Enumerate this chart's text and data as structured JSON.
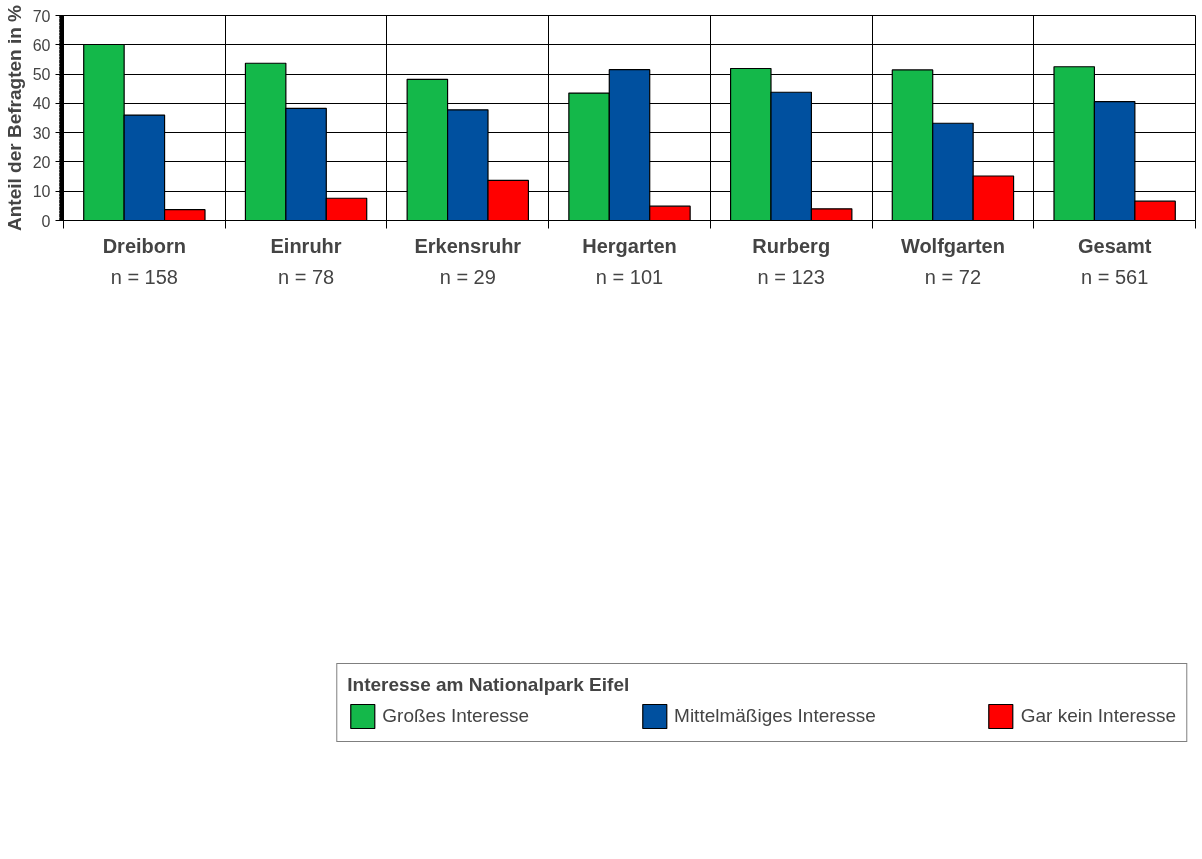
{
  "chart_data": {
    "type": "bar",
    "ylabel": "Anteil der Befragten in %",
    "legend_title": "Interesse am Nationalpark Eifel",
    "categories": [
      "Dreiborn\nn = 158",
      "Einruhr\nn = 78",
      "Erkensruhr\nn = 29",
      "Hergarten\nn = 101",
      "Rurberg\nn = 123",
      "Wolfgarten\nn = 72",
      "Gesamt\nn = 561"
    ],
    "series": [
      {
        "name": "Großes Interesse",
        "color": "#14b84a",
        "values": [
          60.1,
          53.7,
          48.2,
          43.5,
          51.9,
          51.4,
          52.5
        ]
      },
      {
        "name": "Mittelmäßiges Interesse",
        "color": "#00509f",
        "values": [
          36.0,
          38.3,
          37.8,
          51.5,
          43.8,
          33.2,
          40.6
        ]
      },
      {
        "name": "Gar kein Interesse",
        "color": "#ff0000",
        "values": [
          3.7,
          7.6,
          13.7,
          4.9,
          4.0,
          15.2,
          6.6
        ]
      }
    ],
    "ylim": [
      0,
      70
    ],
    "yticks": [
      0,
      10,
      20,
      30,
      40,
      50,
      60,
      70
    ],
    "grid": true,
    "legend": "bottom"
  }
}
